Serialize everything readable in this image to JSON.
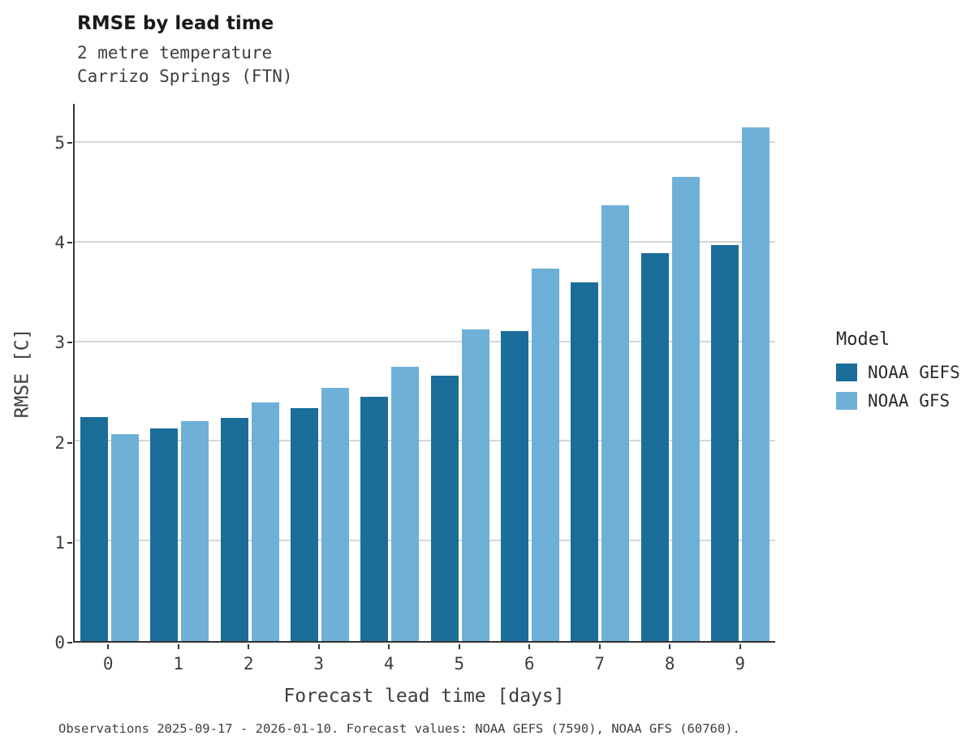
{
  "title": "RMSE by lead time",
  "subtitle_line1": "2 metre temperature",
  "subtitle_line2": "Carrizo Springs (FTN)",
  "footer": "Observations 2025-09-17 - 2026-01-10. Forecast values: NOAA GEFS (7590), NOAA GFS (60760).",
  "legend": {
    "title": "Model",
    "items": [
      {
        "label": "NOAA GEFS",
        "color": "#1b6d9a"
      },
      {
        "label": "NOAA GFS",
        "color": "#6fb0d8"
      }
    ]
  },
  "chart_data": {
    "type": "bar",
    "title": "RMSE by lead time",
    "subtitle": [
      "2 metre temperature",
      "Carrizo Springs (FTN)"
    ],
    "xlabel": "Forecast lead time [days]",
    "ylabel": "RMSE [C]",
    "categories": [
      0,
      1,
      2,
      3,
      4,
      5,
      6,
      7,
      8,
      9
    ],
    "series": [
      {
        "name": "NOAA GEFS",
        "color": "#1b6d9a",
        "values": [
          2.25,
          2.13,
          2.24,
          2.34,
          2.45,
          2.66,
          3.11,
          3.6,
          3.89,
          3.97
        ]
      },
      {
        "name": "NOAA GFS",
        "color": "#6fb0d8",
        "values": [
          2.08,
          2.21,
          2.39,
          2.54,
          2.75,
          3.13,
          3.74,
          4.37,
          4.66,
          5.15
        ]
      }
    ],
    "ylim": [
      0,
      5.39
    ],
    "yticks": [
      0,
      1,
      2,
      3,
      4,
      5
    ],
    "grid": true,
    "legend_position": "right",
    "caption": "Observations 2025-09-17 - 2026-01-10. Forecast values: NOAA GEFS (7590), NOAA GFS (60760)."
  }
}
